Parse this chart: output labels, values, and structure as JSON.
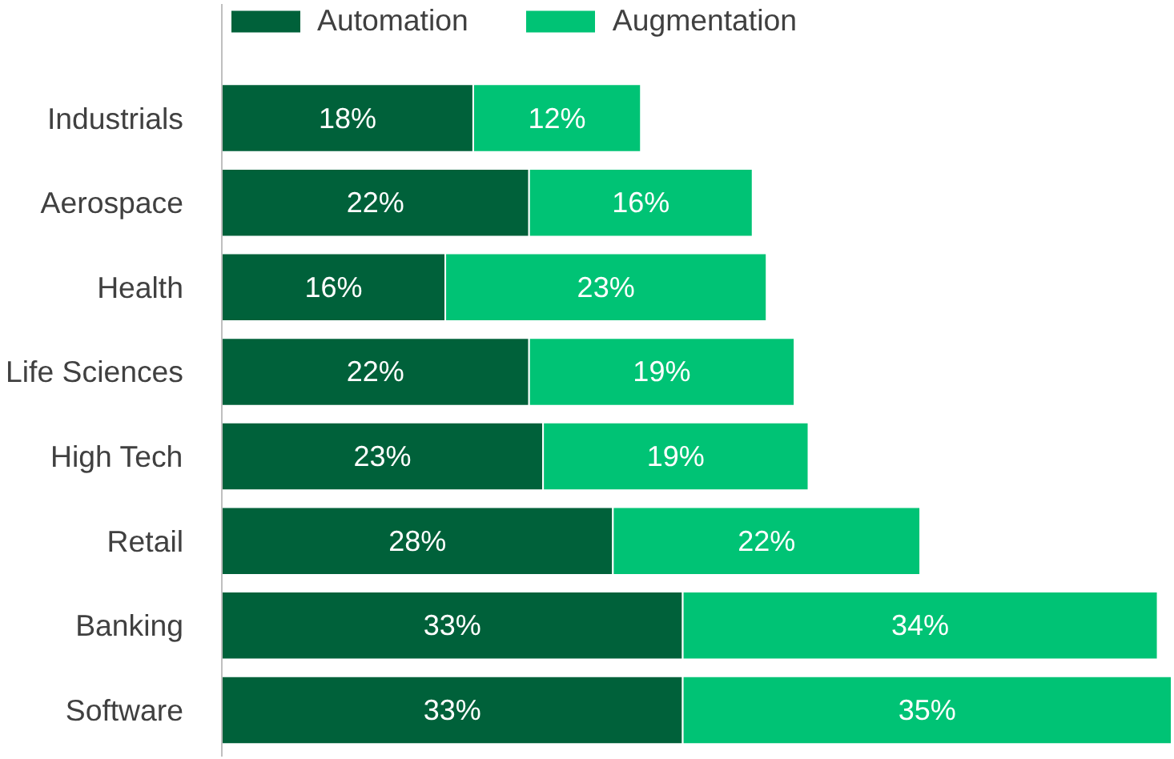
{
  "chart_data": {
    "type": "bar",
    "orientation": "horizontal",
    "stacked": true,
    "legend": "top left",
    "grid": false,
    "categories": [
      "Industrials",
      "Aerospace",
      "Health",
      "Life Sciences",
      "High Tech",
      "Retail",
      "Banking",
      "Software"
    ],
    "series": [
      {
        "name": "Automation",
        "color": "#00613a",
        "values": [
          18,
          22,
          16,
          22,
          23,
          28,
          33,
          33
        ],
        "value_labels": [
          "18%",
          "22%",
          "16%",
          "22%",
          "23%",
          "28%",
          "33%",
          "33%"
        ]
      },
      {
        "name": "Augmentation",
        "color": "#00c375",
        "values": [
          12,
          16,
          23,
          19,
          19,
          22,
          34,
          35
        ],
        "value_labels": [
          "12%",
          "16%",
          "23%",
          "19%",
          "19%",
          "22%",
          "34%",
          "35%"
        ]
      }
    ]
  }
}
